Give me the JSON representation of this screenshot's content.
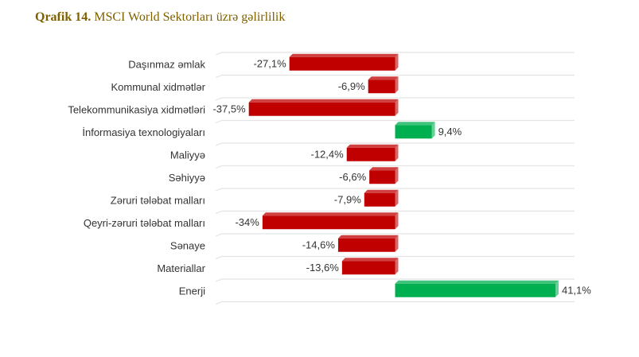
{
  "chart_data": {
    "type": "bar",
    "orientation": "horizontal",
    "title_label": "Qrafik 14.",
    "title": "MSCI World Sektorları üzrə gəlirlilik",
    "categories": [
      "Daşınmaz əmlak",
      "Kommunal xidmətlər",
      "Telekommunikasiya xidmətləri",
      "İnformasiya texnologiyaları",
      "Maliyyə",
      "Səhiyyə",
      "Zəruri tələbat malları",
      "Qeyri-zəruri tələbat malları",
      "Sənaye",
      "Materiallar",
      "Enerji"
    ],
    "values": [
      -27.1,
      -6.9,
      -37.5,
      9.4,
      -12.4,
      -6.6,
      -7.9,
      -34,
      -14.6,
      -13.6,
      41.1
    ],
    "value_labels": [
      "-27,1%",
      "-6,9%",
      "-37,5%",
      "9,4%",
      "-12,4%",
      "-6,6%",
      "-7,9%",
      "-34%",
      "-14,6%",
      "-13,6%",
      "41,1%"
    ],
    "positive_color": "#00b050",
    "negative_color": "#c00000",
    "xlim": [
      -46,
      46
    ]
  }
}
